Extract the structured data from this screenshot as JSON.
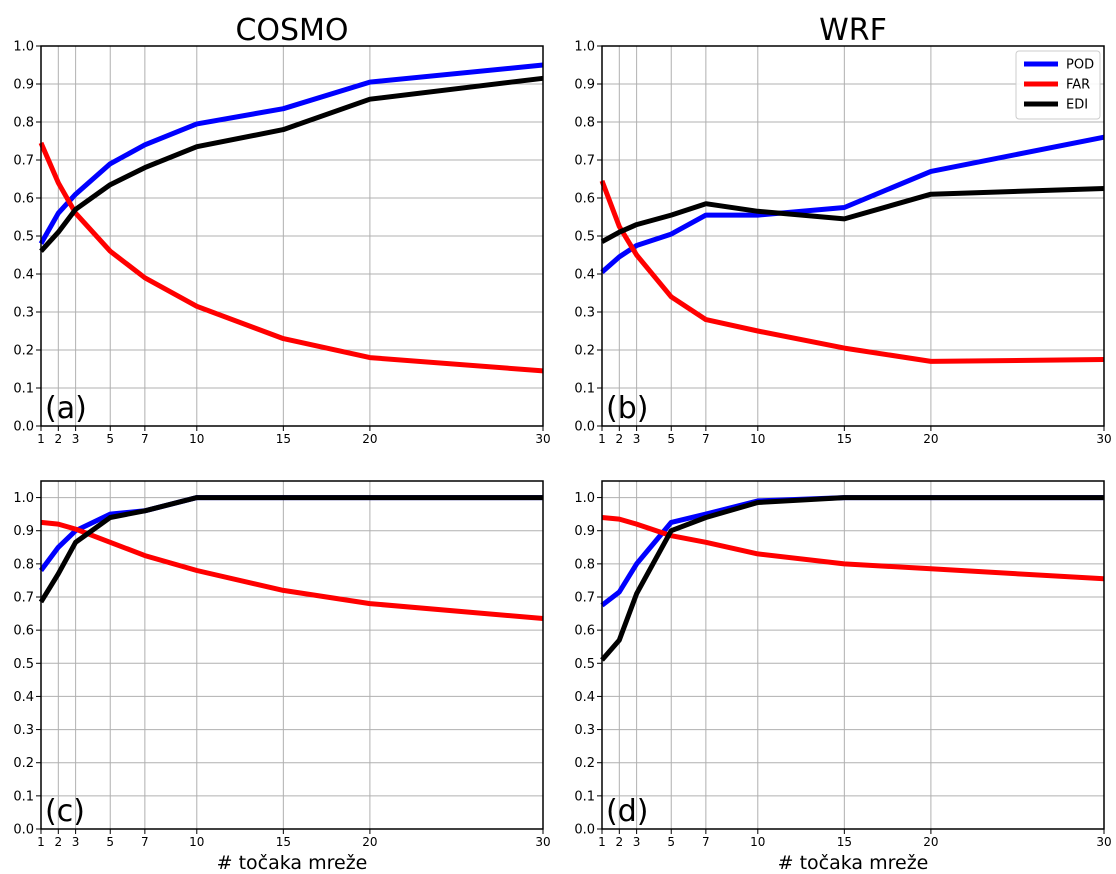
{
  "colors": {
    "POD": "#0000ff",
    "FAR": "#ff0000",
    "EDI": "#000000",
    "grid": "#b0b0b0",
    "axis": "#000000"
  },
  "chart_data": [
    {
      "type": "line",
      "title": "COSMO",
      "panel_label": "(a)",
      "xlabel": "",
      "x": [
        1,
        2,
        3,
        5,
        7,
        10,
        15,
        20,
        30
      ],
      "xlim": [
        1,
        30
      ],
      "ylim": [
        0.0,
        1.0
      ],
      "xticks": [
        "1",
        "2",
        "3",
        "5",
        "7",
        "10",
        "15",
        "20",
        "30"
      ],
      "yticks": [
        "0.0",
        "0.1",
        "0.2",
        "0.3",
        "0.4",
        "0.5",
        "0.6",
        "0.7",
        "0.8",
        "0.9",
        "1.0"
      ],
      "grid": true,
      "legend": null,
      "series": [
        {
          "name": "POD",
          "values": [
            0.48,
            0.56,
            0.61,
            0.69,
            0.74,
            0.795,
            0.835,
            0.905,
            0.95
          ]
        },
        {
          "name": "FAR",
          "values": [
            0.745,
            0.64,
            0.56,
            0.46,
            0.39,
            0.315,
            0.23,
            0.18,
            0.145
          ]
        },
        {
          "name": "EDI",
          "values": [
            0.46,
            0.51,
            0.57,
            0.635,
            0.68,
            0.735,
            0.78,
            0.86,
            0.915
          ]
        }
      ]
    },
    {
      "type": "line",
      "title": "WRF",
      "panel_label": "(b)",
      "xlabel": "",
      "x": [
        1,
        2,
        3,
        5,
        7,
        10,
        15,
        20,
        30
      ],
      "xlim": [
        1,
        30
      ],
      "ylim": [
        0.0,
        1.0
      ],
      "xticks": [
        "1",
        "2",
        "3",
        "5",
        "7",
        "10",
        "15",
        "20",
        "30"
      ],
      "yticks": [
        "0.0",
        "0.1",
        "0.2",
        "0.3",
        "0.4",
        "0.5",
        "0.6",
        "0.7",
        "0.8",
        "0.9",
        "1.0"
      ],
      "grid": true,
      "legend": {
        "placement": "top-right",
        "entries": [
          "POD",
          "FAR",
          "EDI"
        ]
      },
      "series": [
        {
          "name": "POD",
          "values": [
            0.405,
            0.445,
            0.475,
            0.505,
            0.555,
            0.555,
            0.575,
            0.67,
            0.76
          ]
        },
        {
          "name": "FAR",
          "values": [
            0.645,
            0.525,
            0.45,
            0.34,
            0.28,
            0.25,
            0.205,
            0.17,
            0.175
          ]
        },
        {
          "name": "EDI",
          "values": [
            0.485,
            0.51,
            0.53,
            0.555,
            0.585,
            0.565,
            0.545,
            0.61,
            0.625
          ]
        }
      ]
    },
    {
      "type": "line",
      "title": "",
      "panel_label": "(c)",
      "xlabel": "# točaka mreže",
      "x": [
        1,
        2,
        3,
        5,
        7,
        10,
        15,
        20,
        30
      ],
      "xlim": [
        1,
        30
      ],
      "ylim": [
        0.0,
        1.05
      ],
      "xticks": [
        "1",
        "2",
        "3",
        "5",
        "7",
        "10",
        "15",
        "20",
        "30"
      ],
      "yticks": [
        "0.0",
        "0.1",
        "0.2",
        "0.3",
        "0.4",
        "0.5",
        "0.6",
        "0.7",
        "0.8",
        "0.9",
        "1.0"
      ],
      "grid": true,
      "legend": null,
      "series": [
        {
          "name": "POD",
          "values": [
            0.78,
            0.85,
            0.9,
            0.95,
            0.96,
            1.0,
            1.0,
            1.0,
            1.0
          ]
        },
        {
          "name": "FAR",
          "values": [
            0.925,
            0.92,
            0.905,
            0.865,
            0.825,
            0.78,
            0.72,
            0.68,
            0.635
          ]
        },
        {
          "name": "EDI",
          "values": [
            0.685,
            0.77,
            0.865,
            0.94,
            0.96,
            1.0,
            1.0,
            1.0,
            1.0
          ]
        }
      ]
    },
    {
      "type": "line",
      "title": "",
      "panel_label": "(d)",
      "xlabel": "# točaka mreže",
      "x": [
        1,
        2,
        3,
        5,
        7,
        10,
        15,
        20,
        30
      ],
      "xlim": [
        1,
        30
      ],
      "ylim": [
        0.0,
        1.05
      ],
      "xticks": [
        "1",
        "2",
        "3",
        "5",
        "7",
        "10",
        "15",
        "20",
        "30"
      ],
      "yticks": [
        "0.0",
        "0.1",
        "0.2",
        "0.3",
        "0.4",
        "0.5",
        "0.6",
        "0.7",
        "0.8",
        "0.9",
        "1.0"
      ],
      "grid": true,
      "legend": null,
      "series": [
        {
          "name": "POD",
          "values": [
            0.675,
            0.715,
            0.8,
            0.925,
            0.95,
            0.99,
            1.0,
            1.0,
            1.0
          ]
        },
        {
          "name": "FAR",
          "values": [
            0.94,
            0.935,
            0.92,
            0.885,
            0.865,
            0.83,
            0.8,
            0.785,
            0.755
          ]
        },
        {
          "name": "EDI",
          "values": [
            0.51,
            0.57,
            0.71,
            0.9,
            0.94,
            0.985,
            1.0,
            1.0,
            1.0
          ]
        }
      ]
    }
  ]
}
